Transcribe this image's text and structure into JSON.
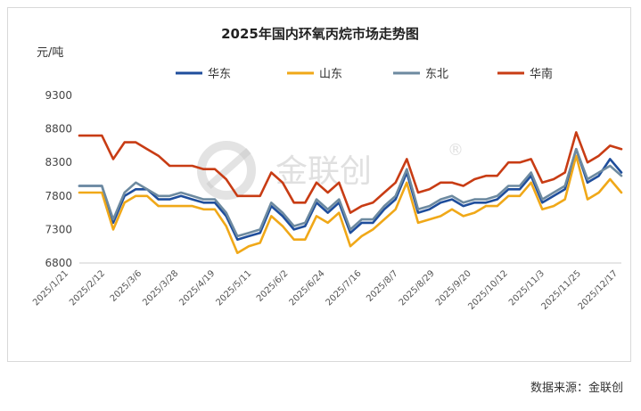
{
  "chart_data": {
    "type": "line",
    "title": "2025年国内环氧丙烷市场走势图",
    "ylabel": "元/吨",
    "ylim": [
      6800,
      9300
    ],
    "yticks": [
      6800,
      7300,
      7800,
      8300,
      8800,
      9300
    ],
    "grid": false,
    "legend_position": "top",
    "x_tick_labels": [
      "2025/1/21",
      "2025/2/12",
      "2025/3/6",
      "2025/3/28",
      "2025/4/19",
      "2025/5/11",
      "2025/6/2",
      "2025/6/24",
      "2025/7/16",
      "2025/8/7",
      "2025/8/29",
      "2025/9/20",
      "2025/10/12",
      "2025/11/3",
      "2025/11/25",
      "2025/12/17"
    ],
    "series": [
      {
        "name": "华东",
        "color": "#1f4e9c",
        "values": [
          7950,
          7950,
          7950,
          7400,
          7800,
          7900,
          7900,
          7750,
          7750,
          7800,
          7750,
          7700,
          7700,
          7500,
          7150,
          7200,
          7250,
          7650,
          7500,
          7300,
          7350,
          7700,
          7550,
          7700,
          7250,
          7400,
          7400,
          7600,
          7750,
          8150,
          7550,
          7600,
          7700,
          7750,
          7650,
          7700,
          7700,
          7750,
          7900,
          7900,
          8100,
          7700,
          7800,
          7900,
          8500,
          8000,
          8100,
          8350,
          8150
        ]
      },
      {
        "name": "山东",
        "color": "#f0a818",
        "values": [
          7850,
          7850,
          7850,
          7300,
          7700,
          7800,
          7800,
          7650,
          7650,
          7650,
          7650,
          7600,
          7600,
          7350,
          6950,
          7050,
          7100,
          7500,
          7350,
          7150,
          7150,
          7500,
          7400,
          7550,
          7050,
          7200,
          7300,
          7450,
          7600,
          8000,
          7400,
          7450,
          7500,
          7600,
          7500,
          7550,
          7650,
          7650,
          7800,
          7800,
          8000,
          7600,
          7650,
          7750,
          8400,
          7750,
          7850,
          8050,
          7850
        ]
      },
      {
        "name": "东北",
        "color": "#6d8aa0",
        "values": [
          7950,
          7950,
          7950,
          7450,
          7850,
          8000,
          7900,
          7800,
          7800,
          7850,
          7800,
          7750,
          7750,
          7550,
          7200,
          7250,
          7300,
          7700,
          7550,
          7350,
          7400,
          7750,
          7600,
          7750,
          7300,
          7450,
          7450,
          7650,
          7800,
          8200,
          7600,
          7650,
          7750,
          7800,
          7700,
          7750,
          7750,
          7800,
          7950,
          7950,
          8150,
          7750,
          7850,
          7950,
          8500,
          8050,
          8150,
          8250,
          8100
        ]
      },
      {
        "name": "华南",
        "color": "#c83c14",
        "values": [
          8700,
          8700,
          8700,
          8350,
          8600,
          8600,
          8500,
          8400,
          8250,
          8250,
          8250,
          8200,
          8200,
          8050,
          7800,
          7800,
          7800,
          8150,
          8000,
          7700,
          7700,
          8000,
          7850,
          8000,
          7550,
          7650,
          7700,
          7850,
          8000,
          8350,
          7850,
          7900,
          8000,
          8000,
          7950,
          8050,
          8100,
          8100,
          8300,
          8300,
          8350,
          8000,
          8050,
          8150,
          8750,
          8300,
          8400,
          8550,
          8500
        ]
      }
    ]
  },
  "watermark": {
    "logo_icon": "jinlianchuang-logo-icon",
    "text": "金联创",
    "registered": "®"
  },
  "footer": {
    "source": "数据来源：金联创"
  }
}
